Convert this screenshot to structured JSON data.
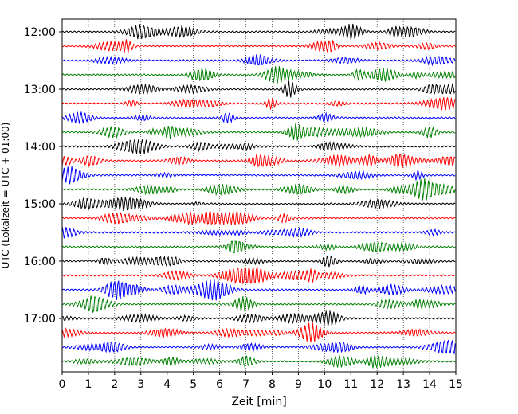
{
  "chart_data": {
    "type": "line",
    "title": "",
    "xlabel": "Zeit  [min]",
    "ylabel": "UTC (Lokalzeit = UTC + 01:00)",
    "xlim": [
      0,
      15
    ],
    "x_ticks": [
      0,
      1,
      2,
      3,
      4,
      5,
      6,
      7,
      8,
      9,
      10,
      11,
      12,
      13,
      14,
      15
    ],
    "x_tick_labels": [
      "0",
      "1",
      "2",
      "3",
      "4",
      "5",
      "6",
      "7",
      "8",
      "9",
      "10",
      "11",
      "12",
      "13",
      "14",
      "15"
    ],
    "y_time_range": [
      "12:00",
      "17:45"
    ],
    "y_tick_labels": [
      "12:00",
      "13:00",
      "14:00",
      "15:00",
      "16:00",
      "17:00"
    ],
    "trace_interval_minutes": 15,
    "trace_count": 24,
    "trace_color_cycle": [
      "#000000",
      "#ff0000",
      "#0000ff",
      "#008000"
    ],
    "grid": "vertical-dotted"
  }
}
